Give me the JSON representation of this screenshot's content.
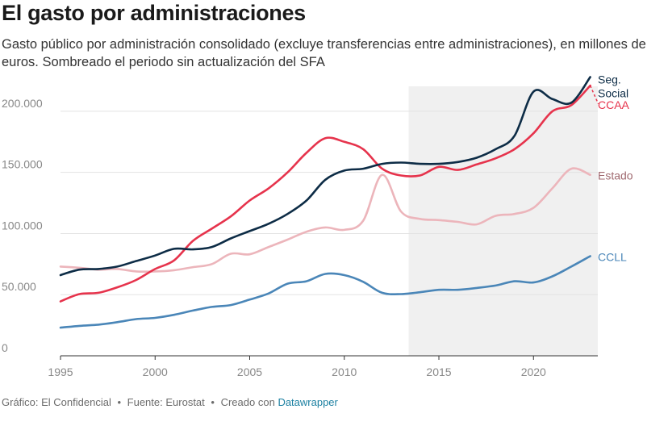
{
  "header": {
    "title": "El gasto por administraciones",
    "subtitle": "Gasto público por administración consolidado (excluye transferencias entre administraciones), en millones de euros. Sombreado el periodo sin actualización del SFA"
  },
  "footer": {
    "chart_credit": "Gráfico: El Confidencial",
    "source": "Fuente: Eurostat",
    "created_with": "Creado con",
    "tool": "Datawrapper",
    "separator": "•"
  },
  "chart_data": {
    "type": "line",
    "title": "El gasto por administraciones",
    "xlabel": "",
    "ylabel": "",
    "xlim": [
      1995,
      2023.4
    ],
    "ylim": [
      0,
      225000
    ],
    "x_ticks": [
      1995,
      2000,
      2005,
      2010,
      2015,
      2020
    ],
    "y_ticks": [
      0,
      50000,
      100000,
      150000,
      200000
    ],
    "y_tick_labels": [
      "0",
      "50.000",
      "100.000",
      "150.000",
      "200.000"
    ],
    "grid": true,
    "shaded_range": [
      2013.4,
      2023.4
    ],
    "colors": {
      "shade": "#f0f0f0",
      "grid": "#e3e3e3",
      "axis": "#333333",
      "tick_text": "#888888"
    },
    "x": [
      1995,
      1996,
      1997,
      1998,
      1999,
      2000,
      2001,
      2002,
      2003,
      2004,
      2005,
      2006,
      2007,
      2008,
      2009,
      2010,
      2011,
      2012,
      2013,
      2014,
      2015,
      2016,
      2017,
      2018,
      2019,
      2020,
      2021,
      2022,
      2023
    ],
    "series": [
      {
        "name": "Seg. Social",
        "label_lines": [
          "Seg.",
          "Social"
        ],
        "color": "#0d2c46",
        "values": [
          66000,
          70500,
          71000,
          73000,
          77500,
          82000,
          87500,
          87000,
          89000,
          96000,
          102000,
          108000,
          116000,
          127000,
          144000,
          151500,
          153000,
          157000,
          158000,
          157000,
          157000,
          158500,
          162000,
          169000,
          180000,
          216000,
          210000,
          207000,
          228000
        ]
      },
      {
        "name": "CCAA",
        "label_lines": [
          "CCAA"
        ],
        "color": "#e6334c",
        "values": [
          44500,
          50500,
          51500,
          56000,
          62000,
          71000,
          78000,
          94000,
          104000,
          114000,
          127000,
          137000,
          150000,
          166000,
          178000,
          175000,
          169000,
          153000,
          147500,
          147500,
          154500,
          152000,
          156500,
          161500,
          169000,
          182000,
          200000,
          205000,
          221000
        ],
        "dashed_tail": 206000
      },
      {
        "name": "Estado",
        "label_lines": [
          "Estado"
        ],
        "color": "#ecb5bb",
        "label_color": "#a06a70",
        "values": [
          73000,
          72000,
          70500,
          71000,
          69000,
          69000,
          70000,
          72500,
          75000,
          83500,
          83000,
          89000,
          95000,
          101500,
          105000,
          103000,
          110500,
          148000,
          118000,
          112000,
          111000,
          109500,
          107500,
          114500,
          116000,
          121000,
          137000,
          153000,
          148000
        ]
      },
      {
        "name": "CCLL",
        "label_lines": [
          "CCLL"
        ],
        "color": "#4a86b8",
        "values": [
          23000,
          24500,
          25500,
          27500,
          30000,
          31000,
          33500,
          37000,
          40000,
          41500,
          46000,
          51000,
          59000,
          61000,
          67000,
          66000,
          60500,
          51500,
          50500,
          52000,
          54000,
          54000,
          55500,
          57500,
          61000,
          60000,
          65000,
          73000,
          81500
        ]
      }
    ]
  }
}
